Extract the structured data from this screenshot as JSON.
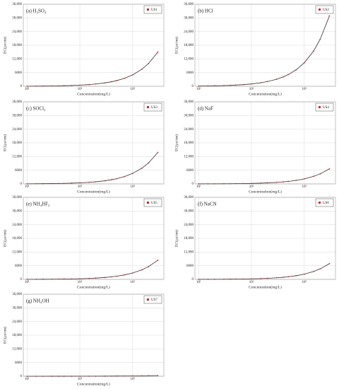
{
  "chart_data": [
    {
      "type": "line",
      "title": "(a) H₂SO₄",
      "x_label": "Concentration(mg/L)",
      "y_label": "EC(μs/cm)",
      "xscale": "log",
      "grid": true,
      "x": [
        10,
        15,
        20,
        30,
        40,
        50,
        70,
        100,
        150,
        200,
        300,
        400,
        500,
        700,
        1000,
        1500,
        2000,
        3000
      ],
      "series": [
        {
          "name": "US1",
          "color": "#d62728",
          "line_color": "#333333",
          "values": [
            50,
            75,
            100,
            150,
            200,
            250,
            350,
            500,
            750,
            1000,
            1500,
            2000,
            2500,
            3500,
            5000,
            7500,
            10000,
            15000
          ]
        }
      ],
      "xlim": [
        8.5,
        3900
      ],
      "ylim": [
        0,
        36000
      ],
      "xticks": [
        {
          "value": 10,
          "label": "10¹"
        },
        {
          "value": 100,
          "label": "10²"
        },
        {
          "value": 1000,
          "label": "10³"
        }
      ],
      "yticks": [
        0,
        6000,
        {
          "value": 12000,
          "label": "12,000"
        },
        {
          "value": 18000,
          "label": "18,000"
        },
        {
          "value": 24000,
          "label": "24,000"
        },
        {
          "value": 30000,
          "label": "30,000"
        },
        {
          "value": 36000,
          "label": "36,000"
        }
      ]
    },
    {
      "type": "line",
      "title": "(b) HCl",
      "x_label": "Concentration(mg/L)",
      "y_label": "EC(μs/cm)",
      "xscale": "log",
      "grid": true,
      "x": [
        10,
        15,
        20,
        30,
        40,
        50,
        70,
        100,
        150,
        200,
        300,
        400,
        500,
        700,
        1000,
        1500,
        2000,
        3000
      ],
      "series": [
        {
          "name": "US2",
          "color": "#d62728",
          "line_color": "#333333",
          "values": [
            100,
            150,
            210,
            310,
            410,
            520,
            720,
            1030,
            1550,
            2060,
            3090,
            4120,
            5150,
            7210,
            10300,
            15450,
            20600,
            30900
          ]
        }
      ],
      "xlim": [
        8.5,
        3900
      ],
      "ylim": [
        0,
        36000
      ],
      "xticks": [
        {
          "value": 10,
          "label": "10¹"
        },
        {
          "value": 100,
          "label": "10²"
        },
        {
          "value": 1000,
          "label": "10³"
        }
      ],
      "yticks": [
        0,
        6000,
        {
          "value": 12000,
          "label": "12,000"
        },
        {
          "value": 18000,
          "label": "18,000"
        },
        {
          "value": 24000,
          "label": "24,000"
        },
        {
          "value": 30000,
          "label": "30,000"
        },
        {
          "value": 36000,
          "label": "36,000"
        }
      ]
    },
    {
      "type": "line",
      "title": "(c) SOCl₂",
      "x_label": "Concentration(mg/L)",
      "y_label": "EC(μs/cm)",
      "xscale": "log",
      "grid": true,
      "x": [
        10,
        15,
        20,
        30,
        40,
        50,
        70,
        100,
        150,
        200,
        300,
        400,
        500,
        700,
        1000,
        1500,
        2000,
        3000
      ],
      "series": [
        {
          "name": "US3",
          "color": "#d62728",
          "line_color": "#333333",
          "values": [
            46,
            69,
            92,
            138,
            184,
            230,
            322,
            460,
            690,
            920,
            1380,
            1840,
            2300,
            3220,
            4600,
            6900,
            9200,
            13800
          ]
        }
      ],
      "xlim": [
        8.5,
        3900
      ],
      "ylim": [
        0,
        36000
      ],
      "xticks": [
        {
          "value": 10,
          "label": "10¹"
        },
        {
          "value": 100,
          "label": "10²"
        },
        {
          "value": 1000,
          "label": "10³"
        }
      ],
      "yticks": [
        0,
        6000,
        {
          "value": 12000,
          "label": "12,000"
        },
        {
          "value": 18000,
          "label": "18,000"
        },
        {
          "value": 24000,
          "label": "24,000"
        },
        {
          "value": 30000,
          "label": "30,000"
        },
        {
          "value": 36000,
          "label": "36,000"
        }
      ]
    },
    {
      "type": "line",
      "title": "(d) NaF",
      "x_label": "Concentration(mg/L)",
      "y_label": "EC(μs/cm)",
      "xscale": "log",
      "grid": true,
      "x": [
        10,
        15,
        20,
        30,
        40,
        50,
        70,
        100,
        150,
        200,
        300,
        400,
        500,
        700,
        1000,
        1500,
        2000,
        3000
      ],
      "series": [
        {
          "name": "US4",
          "color": "#d62728",
          "line_color": "#333333",
          "values": [
            22,
            33,
            44,
            66,
            88,
            110,
            154,
            220,
            330,
            440,
            660,
            880,
            1100,
            1540,
            2200,
            3300,
            4400,
            6600
          ]
        }
      ],
      "xlim": [
        8.5,
        3900
      ],
      "ylim": [
        0,
        36000
      ],
      "xticks": [
        {
          "value": 10,
          "label": "10¹"
        },
        {
          "value": 100,
          "label": "10²"
        },
        {
          "value": 1000,
          "label": "10³"
        }
      ],
      "yticks": [
        0,
        6000,
        {
          "value": 12000,
          "label": "12,000"
        },
        {
          "value": 18000,
          "label": "18,000"
        },
        {
          "value": 24000,
          "label": "24,000"
        },
        {
          "value": 30000,
          "label": "30,000"
        },
        {
          "value": 36000,
          "label": "36,000"
        }
      ]
    },
    {
      "type": "line",
      "title": "(e) NH₄HF₂",
      "x_label": "Concentration(mg/L)",
      "y_label": "EC(μs/cm)",
      "xscale": "log",
      "grid": true,
      "x": [
        10,
        15,
        20,
        30,
        40,
        50,
        70,
        100,
        150,
        200,
        300,
        400,
        500,
        700,
        1000,
        1500,
        2000,
        3000
      ],
      "series": [
        {
          "name": "US5",
          "color": "#d62728",
          "line_color": "#333333",
          "values": [
            28,
            42,
            56,
            84,
            112,
            140,
            196,
            280,
            420,
            560,
            840,
            1120,
            1400,
            1960,
            2800,
            4200,
            5600,
            8400
          ]
        }
      ],
      "xlim": [
        8.5,
        3900
      ],
      "ylim": [
        0,
        36000
      ],
      "xticks": [
        {
          "value": 10,
          "label": "10¹"
        },
        {
          "value": 100,
          "label": "10²"
        },
        {
          "value": 1000,
          "label": "10³"
        }
      ],
      "yticks": [
        0,
        6000,
        {
          "value": 12000,
          "label": "12,000"
        },
        {
          "value": 18000,
          "label": "18,000"
        },
        {
          "value": 24000,
          "label": "24,000"
        },
        {
          "value": 30000,
          "label": "30,000"
        },
        {
          "value": 36000,
          "label": "36,000"
        }
      ]
    },
    {
      "type": "line",
      "title": "(f) NaCN",
      "x_label": "Concentration(mg/L)",
      "y_label": "EC(μs/cm)",
      "xscale": "log",
      "grid": true,
      "x": [
        10,
        15,
        20,
        30,
        40,
        50,
        70,
        100,
        150,
        200,
        300,
        400,
        500,
        700,
        1000,
        1500,
        2000,
        3000
      ],
      "series": [
        {
          "name": "US6",
          "color": "#d62728",
          "line_color": "#333333",
          "values": [
            23,
            35,
            46,
            69,
            92,
            115,
            161,
            230,
            345,
            460,
            690,
            920,
            1150,
            1610,
            2300,
            3450,
            4600,
            6900
          ]
        }
      ],
      "xlim": [
        8.5,
        3900
      ],
      "ylim": [
        0,
        36000
      ],
      "xticks": [
        {
          "value": 10,
          "label": "10¹"
        },
        {
          "value": 100,
          "label": "10²"
        },
        {
          "value": 1000,
          "label": "10³"
        }
      ],
      "yticks": [
        0,
        6000,
        {
          "value": 12000,
          "label": "12,000"
        },
        {
          "value": 18000,
          "label": "18,000"
        },
        {
          "value": 24000,
          "label": "24,000"
        },
        {
          "value": 30000,
          "label": "30,000"
        },
        {
          "value": 36000,
          "label": "36,000"
        }
      ]
    },
    {
      "type": "line",
      "title": "(g) NH₄OH",
      "x_label": "Concentration(mg/L)",
      "y_label": "EC(μs/cm)",
      "xscale": "log",
      "grid": true,
      "x": [
        10,
        15,
        20,
        30,
        40,
        50,
        70,
        100,
        150,
        200,
        300,
        400,
        500,
        700,
        1000,
        1500,
        2000,
        3000
      ],
      "series": [
        {
          "name": "US7",
          "color": "#d62728",
          "line_color": "#333333",
          "values": [
            5,
            7,
            9,
            12,
            15,
            18,
            23,
            30,
            40,
            50,
            65,
            80,
            95,
            120,
            150,
            200,
            240,
            300
          ]
        }
      ],
      "xlim": [
        8.5,
        3900
      ],
      "ylim": [
        0,
        36000
      ],
      "xticks": [
        {
          "value": 10,
          "label": "10¹"
        },
        {
          "value": 100,
          "label": "10²"
        },
        {
          "value": 1000,
          "label": "10³"
        }
      ],
      "yticks": [
        0,
        6000,
        {
          "value": 12000,
          "label": "12,000"
        },
        {
          "value": 18000,
          "label": "18,000"
        },
        {
          "value": 24000,
          "label": "24,000"
        },
        {
          "value": 30000,
          "label": "30,000"
        },
        {
          "value": 36000,
          "label": "36,000"
        }
      ]
    }
  ]
}
